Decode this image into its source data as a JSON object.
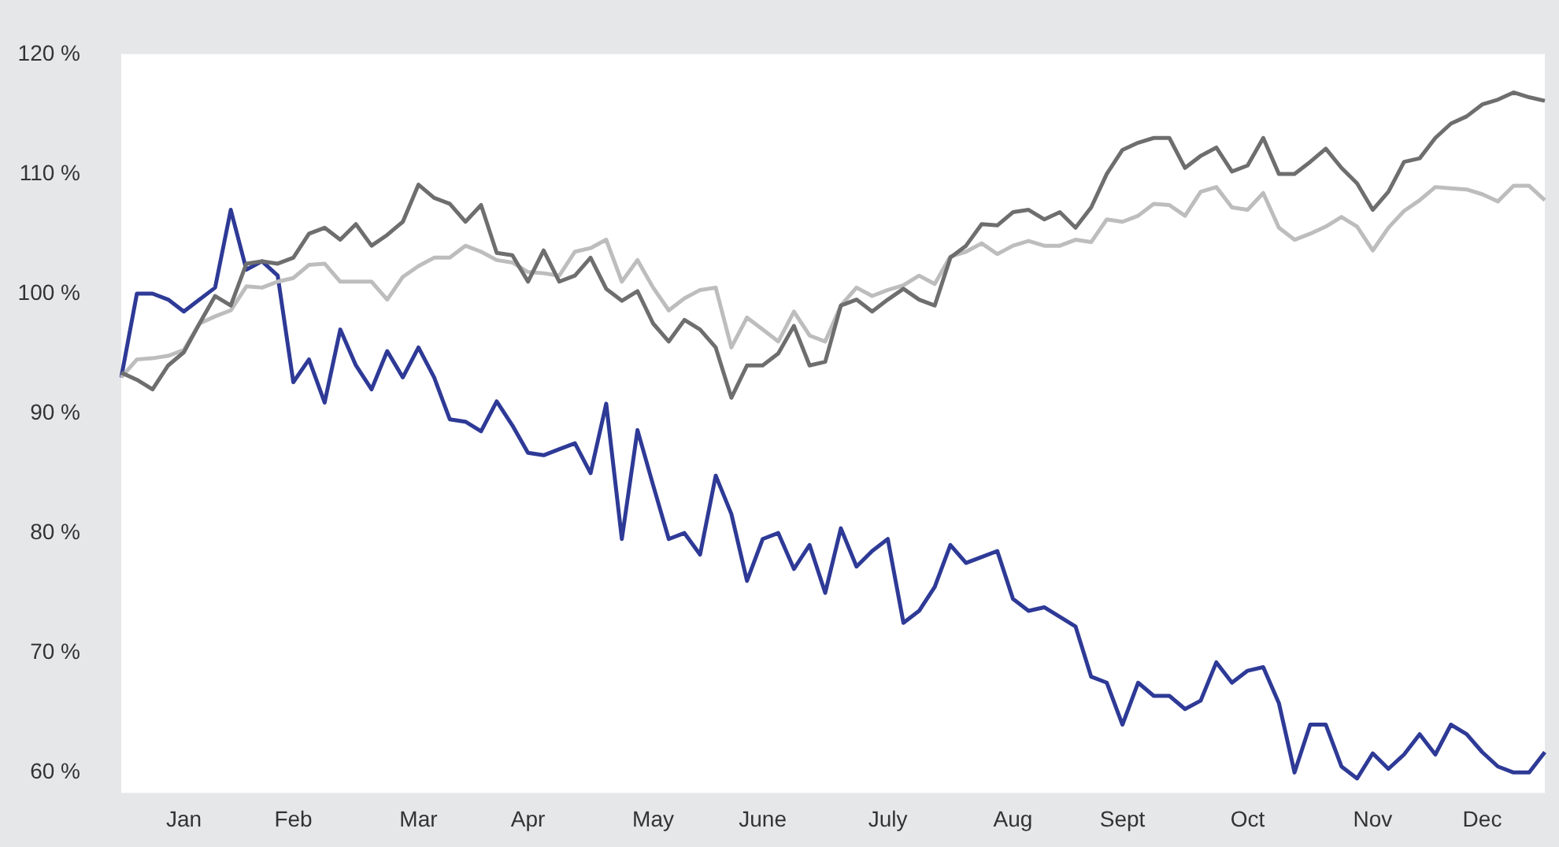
{
  "chart_data": {
    "type": "line",
    "categories": [
      null,
      null,
      null,
      null,
      "Jan",
      null,
      null,
      null,
      null,
      null,
      null,
      "Feb",
      null,
      null,
      null,
      null,
      null,
      null,
      null,
      "Mar",
      null,
      null,
      null,
      null,
      null,
      null,
      "Apr",
      null,
      null,
      null,
      null,
      null,
      null,
      null,
      "May",
      null,
      null,
      null,
      null,
      null,
      null,
      "June",
      null,
      null,
      null,
      null,
      null,
      null,
      null,
      "July",
      null,
      null,
      null,
      null,
      null,
      null,
      null,
      "Aug",
      null,
      null,
      null,
      null,
      null,
      null,
      "Sept",
      null,
      null,
      null,
      null,
      null,
      null,
      null,
      "Oct",
      null,
      null,
      null,
      null,
      null,
      null,
      null,
      "Nov",
      null,
      null,
      null,
      null,
      null,
      null,
      "Dec",
      null,
      null,
      null,
      null
    ],
    "series": [
      {
        "color": "#6e6e6e",
        "values": [
          93.4,
          92.8,
          92,
          94,
          95.1,
          97.5,
          99.8,
          99,
          102.5,
          102.7,
          102.5,
          103,
          105,
          105.5,
          104.5,
          105.8,
          104,
          104.9,
          106,
          109.1,
          108,
          107.5,
          106,
          107.4,
          103.4,
          103.2,
          101,
          103.6,
          101,
          101.5,
          103,
          100.4,
          99.4,
          100.2,
          97.5,
          96,
          97.8,
          97,
          95.5,
          91.3,
          94,
          94,
          95,
          97.3,
          94,
          94.3,
          99,
          99.5,
          98.5,
          99.5,
          100.4,
          99.5,
          99,
          103,
          104,
          105.8,
          105.7,
          106.8,
          107,
          106.2,
          106.8,
          105.5,
          107.2,
          110,
          112,
          112.6,
          113,
          113,
          110.5,
          111.5,
          112.2,
          110.2,
          110.7,
          113,
          110,
          110,
          111,
          112.1,
          110.5,
          109.2,
          107,
          108.5,
          111,
          111.3,
          113,
          114.2,
          114.8,
          115.8,
          116.2,
          116.8,
          116.4,
          116.1
        ]
      },
      {
        "color": "#bdbdbd",
        "values": [
          93,
          94.5,
          94.6,
          94.8,
          95.3,
          97.5,
          98.1,
          98.6,
          100.6,
          100.5,
          101,
          101.3,
          102.4,
          102.5,
          101,
          101,
          101,
          99.5,
          101.4,
          102.3,
          103,
          103,
          104,
          103.5,
          102.8,
          102.6,
          101.8,
          101.7,
          101.5,
          103.5,
          103.8,
          104.5,
          101,
          102.8,
          100.5,
          98.6,
          99.6,
          100.3,
          100.5,
          95.5,
          98,
          97,
          96,
          98.5,
          96.5,
          96,
          99,
          100.5,
          99.8,
          100.3,
          100.7,
          101.5,
          100.8,
          103.1,
          103.5,
          104.2,
          103.3,
          104,
          104.4,
          104,
          104,
          104.5,
          104.3,
          106.2,
          106,
          106.5,
          107.5,
          107.4,
          106.5,
          108.5,
          108.9,
          107.2,
          107,
          108.4,
          105.5,
          104.5,
          105,
          105.6,
          106.4,
          105.6,
          103.6,
          105.5,
          106.9,
          107.8,
          108.9,
          108.8,
          108.7,
          108.3,
          107.7,
          109,
          109,
          107.8
        ]
      },
      {
        "color": "#2e3a96",
        "values": [
          93,
          100,
          100,
          99.5,
          98.5,
          99.5,
          100.5,
          107,
          102,
          102.7,
          101.5,
          92.6,
          94.5,
          90.9,
          97,
          94,
          92,
          95.2,
          93,
          95.5,
          93,
          89.5,
          89.3,
          88.5,
          91,
          89,
          86.7,
          86.5,
          87,
          87.5,
          85,
          90.8,
          79.5,
          88.6,
          84,
          79.5,
          80,
          78.2,
          84.8,
          81.6,
          76,
          79.5,
          80,
          77,
          79,
          75,
          80.4,
          77.2,
          78.5,
          79.5,
          72.5,
          73.5,
          75.5,
          79,
          77.5,
          78,
          78.5,
          74.5,
          73.5,
          73.8,
          73,
          72.2,
          68,
          67.5,
          64,
          67.5,
          66.4,
          66.4,
          65.3,
          66,
          69.2,
          67.5,
          68.5,
          68.8,
          65.8,
          60,
          64,
          64,
          60.5,
          59.5,
          61.6,
          60.3,
          61.5,
          63.2,
          61.5,
          64,
          63.2,
          61.7,
          60.5,
          60,
          60,
          61.7
        ]
      }
    ],
    "ylim": [
      58.3,
      120
    ],
    "yticks": [
      {
        "value": 60,
        "label": "60 %"
      },
      {
        "value": 70,
        "label": "70 %"
      },
      {
        "value": 80,
        "label": "80 %"
      },
      {
        "value": 90,
        "label": "90 %"
      },
      {
        "value": 100,
        "label": "100 %"
      },
      {
        "value": 110,
        "label": "110 %"
      },
      {
        "value": 120,
        "label": "120 %"
      }
    ],
    "grid": false,
    "legend": false,
    "marker": "none",
    "line_style": "solid"
  }
}
